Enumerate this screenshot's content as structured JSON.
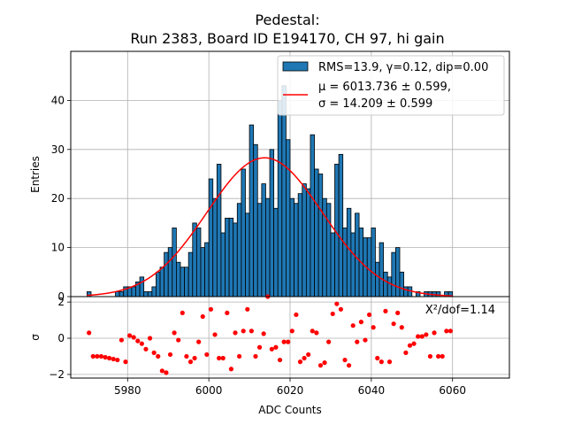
{
  "chart_data": {
    "type": "bar",
    "title_line1": "Pedestal:",
    "title_line2": "Run 2383, Board ID E194170, CH 97, hi gain",
    "ylabel_top": "Entries",
    "ylabel_bottom": "σ",
    "xlabel": "ADC Counts",
    "xlim": [
      5966,
      6074
    ],
    "ylim_top": [
      0,
      50
    ],
    "ylim_bottom": [
      -2.2,
      2.3
    ],
    "grid": true,
    "legend_position": "top-right",
    "bar_color": "#1f77b4",
    "fit_color": "#ff0000",
    "resid_color": "#ff0000",
    "xticks": [
      5980,
      6000,
      6020,
      6040,
      6060
    ],
    "xtick_labels": [
      "5980",
      "6000",
      "6020",
      "6040",
      "6060"
    ],
    "yticks_top": [
      0,
      10,
      20,
      30,
      40
    ],
    "ytick_labels_top": [
      "0",
      "10",
      "20",
      "30",
      "40"
    ],
    "yticks_bottom": [
      -2,
      0,
      2
    ],
    "ytick_labels_bottom": [
      "−2",
      "0",
      "2"
    ],
    "legend_hist_label": "RMS=13.9, γ=0.12, dip=0.00",
    "legend_fit_line1": "μ = 6013.736 ± 0.599,",
    "legend_fit_line2": "σ = 14.209 ± 0.599",
    "chi2_label": "Χ²/dof=1.14",
    "fit": {
      "mu": 6013.736,
      "sigma": 14.209,
      "amplitude": 28.3,
      "x_range": [
        5970,
        6060
      ]
    },
    "bin_width": 1,
    "bins_x": [
      5970,
      5971,
      5972,
      5973,
      5974,
      5975,
      5976,
      5977,
      5978,
      5979,
      5980,
      5981,
      5982,
      5983,
      5984,
      5985,
      5986,
      5987,
      5988,
      5989,
      5990,
      5991,
      5992,
      5993,
      5994,
      5995,
      5996,
      5997,
      5998,
      5999,
      6000,
      6001,
      6002,
      6003,
      6004,
      6005,
      6006,
      6007,
      6008,
      6009,
      6010,
      6011,
      6012,
      6013,
      6014,
      6015,
      6016,
      6017,
      6018,
      6019,
      6020,
      6021,
      6022,
      6023,
      6024,
      6025,
      6026,
      6027,
      6028,
      6029,
      6030,
      6031,
      6032,
      6033,
      6034,
      6035,
      6036,
      6037,
      6038,
      6039,
      6040,
      6041,
      6042,
      6043,
      6044,
      6045,
      6046,
      6047,
      6048,
      6049,
      6050,
      6051,
      6052,
      6053,
      6054,
      6055,
      6056,
      6057,
      6058,
      6059
    ],
    "counts": [
      1,
      0,
      0,
      0,
      0,
      0,
      0,
      1,
      1,
      2,
      2,
      2,
      3,
      4,
      1,
      1,
      2,
      5,
      6,
      9,
      10,
      14,
      7,
      6,
      6,
      9,
      15,
      14,
      10,
      11,
      24,
      20,
      27,
      13,
      16,
      16,
      15,
      19,
      26,
      17,
      35,
      31,
      19,
      23,
      20,
      30,
      18,
      40,
      43,
      32,
      20,
      19,
      21,
      23,
      22,
      33,
      26,
      25,
      20,
      19,
      13,
      27,
      29,
      14,
      18,
      13,
      17,
      14,
      12,
      12,
      14,
      7,
      11,
      5,
      4,
      9,
      10,
      5,
      2,
      2,
      0,
      1,
      0,
      1,
      1,
      1,
      1,
      0,
      1,
      1
    ],
    "residuals": [
      0.3,
      -1.0,
      -1.0,
      -1.0,
      -1.05,
      -1.1,
      -1.15,
      -1.2,
      -0.1,
      -1.3,
      0.15,
      0.05,
      -0.15,
      -0.3,
      -0.6,
      0.0,
      -0.8,
      -1.0,
      -1.8,
      -1.9,
      -0.9,
      0.3,
      -0.1,
      1.4,
      -1.0,
      -1.3,
      -1.1,
      -0.2,
      1.2,
      -0.9,
      1.6,
      0.2,
      -1.1,
      -1.1,
      1.4,
      -1.7,
      0.3,
      -1.0,
      0.4,
      1.6,
      0.4,
      -1.0,
      -0.5,
      0.25,
      2.3,
      -0.6,
      -0.5,
      -1.2,
      -0.2,
      -0.2,
      0.4,
      1.3,
      -1.3,
      -1.1,
      -0.9,
      0.4,
      0.3,
      -1.5,
      -1.35,
      -0.2,
      1.35,
      1.9,
      1.6,
      -1.2,
      -1.5,
      0.7,
      -0.2,
      0.9,
      -0.1,
      1.3,
      0.6,
      -1.1,
      -1.3,
      1.5,
      -1.3,
      0.8,
      1.4,
      0.6,
      -0.8,
      -0.4,
      -0.3,
      0.1,
      0.1,
      0.2,
      -1.0,
      0.3,
      -1.0,
      -1.0,
      0.4,
      0.4
    ]
  }
}
